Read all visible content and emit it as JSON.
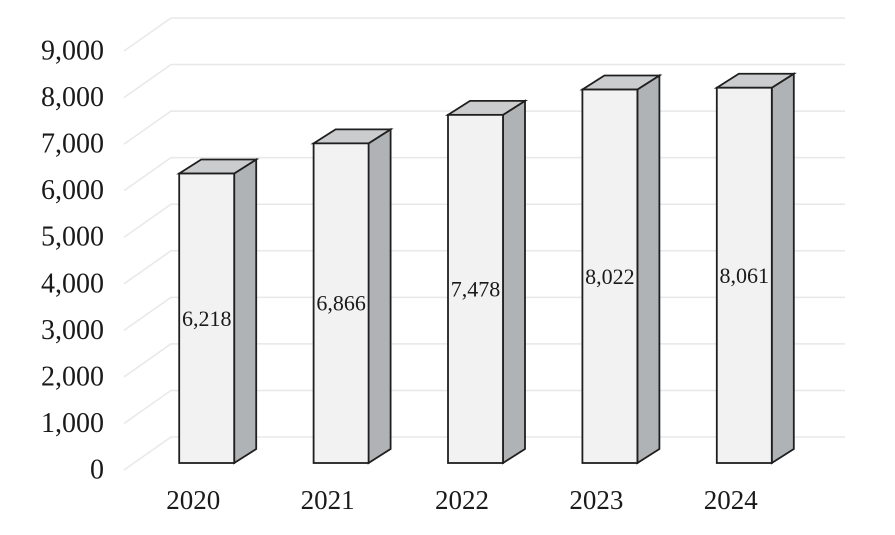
{
  "chart_data": {
    "type": "bar",
    "variant": "3d-column",
    "title": "",
    "categories": [
      "2020",
      "2021",
      "2022",
      "2023",
      "2024"
    ],
    "values": [
      6218,
      6866,
      7478,
      8022,
      8061
    ],
    "data_labels": [
      "6,218",
      "6,866",
      "7,478",
      "8,022",
      "8,061"
    ],
    "y_tick_values": [
      0,
      1000,
      2000,
      3000,
      4000,
      5000,
      6000,
      7000,
      8000,
      9000
    ],
    "y_tick_labels": [
      "0",
      "1,000",
      "2,000",
      "3,000",
      "4,000",
      "5,000",
      "6,000",
      "7,000",
      "8,000",
      "9,000"
    ],
    "ylim": [
      0,
      9000
    ],
    "xlabel": "",
    "ylabel": "",
    "grid": true,
    "legend": "none",
    "colors": {
      "background": "#ffffff",
      "bar_front": "#f2f2f2",
      "bar_top": "#cacccd",
      "bar_side": "#b0b3b5",
      "bar_outline": "#1f1f1f",
      "gridline": "#e8e8e8",
      "text": "#1a1a1a"
    }
  }
}
